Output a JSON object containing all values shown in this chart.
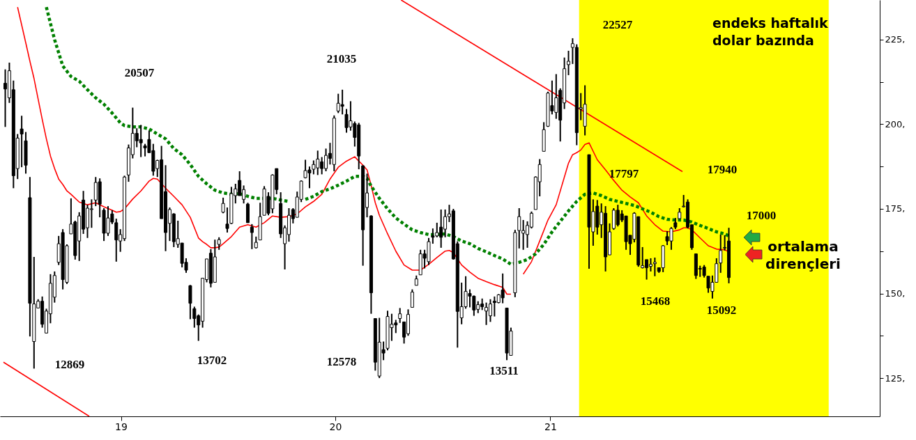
{
  "chart_data": {
    "type": "candlestick",
    "title": "endeks haftalık\ndolar bazında",
    "color": "#000000",
    "xlim": [
      "2018-06-15",
      "2022-07-10"
    ],
    "xticks": [
      {
        "value": "2019-01-01",
        "label": "19"
      },
      {
        "value": "2020-01-01",
        "label": "20"
      },
      {
        "value": "2021-01-01",
        "label": "21"
      }
    ],
    "ylim": [
      113.7,
      236.7
    ],
    "yticks": [
      {
        "value": 125,
        "label": "125,"
      },
      {
        "value": 137.5,
        "label": null
      },
      {
        "value": 150,
        "label": "150,"
      },
      {
        "value": 162.5,
        "label": null
      },
      {
        "value": 175,
        "label": "175,"
      },
      {
        "value": 187.5,
        "label": null
      },
      {
        "value": 200,
        "label": "200,"
      },
      {
        "value": 212.5,
        "label": null
      },
      {
        "value": 225,
        "label": "225,"
      }
    ],
    "x": [
      "2018-06-18",
      "2018-06-25",
      "2018-07-02",
      "2018-07-09",
      "2018-07-16",
      "2018-07-23",
      "2018-07-30",
      "2018-08-06",
      "2018-08-13",
      "2018-08-20",
      "2018-08-27",
      "2018-09-03",
      "2018-09-10",
      "2018-09-17",
      "2018-09-24",
      "2018-10-01",
      "2018-10-08",
      "2018-10-15",
      "2018-10-22",
      "2018-10-29",
      "2018-11-05",
      "2018-11-12",
      "2018-11-19",
      "2018-11-26",
      "2018-12-03",
      "2018-12-10",
      "2018-12-17",
      "2018-12-24",
      "2018-12-31",
      "2019-01-07",
      "2019-01-14",
      "2019-01-21",
      "2019-01-28",
      "2019-02-04",
      "2019-02-11",
      "2019-02-18",
      "2019-02-25",
      "2019-03-04",
      "2019-03-11",
      "2019-03-18",
      "2019-03-25",
      "2019-04-01",
      "2019-04-08",
      "2019-04-15",
      "2019-04-22",
      "2019-04-29",
      "2019-05-06",
      "2019-05-13",
      "2019-05-20",
      "2019-05-27",
      "2019-06-03",
      "2019-06-10",
      "2019-06-17",
      "2019-06-24",
      "2019-07-01",
      "2019-07-08",
      "2019-07-15",
      "2019-07-22",
      "2019-07-29",
      "2019-08-05",
      "2019-08-12",
      "2019-08-19",
      "2019-08-26",
      "2019-09-02",
      "2019-09-09",
      "2019-09-16",
      "2019-09-23",
      "2019-09-30",
      "2019-10-07",
      "2019-10-14",
      "2019-10-21",
      "2019-10-28",
      "2019-11-04",
      "2019-11-11",
      "2019-11-18",
      "2019-11-25",
      "2019-12-02",
      "2019-12-09",
      "2019-12-16",
      "2019-12-23",
      "2019-12-30",
      "2020-01-06",
      "2020-01-13",
      "2020-01-20",
      "2020-01-27",
      "2020-02-03",
      "2020-02-10",
      "2020-02-17",
      "2020-02-24",
      "2020-03-02",
      "2020-03-09",
      "2020-03-16",
      "2020-03-23",
      "2020-03-30",
      "2020-04-06",
      "2020-04-13",
      "2020-04-20",
      "2020-04-27",
      "2020-05-04",
      "2020-05-11",
      "2020-05-18",
      "2020-05-25",
      "2020-06-01",
      "2020-06-08",
      "2020-06-15",
      "2020-06-22",
      "2020-06-29",
      "2020-07-06",
      "2020-07-13",
      "2020-07-20",
      "2020-07-27",
      "2020-08-03",
      "2020-08-10",
      "2020-08-17",
      "2020-08-24",
      "2020-08-31",
      "2020-09-07",
      "2020-09-14",
      "2020-09-21",
      "2020-09-28",
      "2020-10-05",
      "2020-10-12",
      "2020-10-19",
      "2020-10-26",
      "2020-11-02",
      "2020-11-09",
      "2020-11-16",
      "2020-11-23",
      "2020-11-30",
      "2020-12-07",
      "2020-12-14",
      "2020-12-21",
      "2020-12-28",
      "2021-01-04",
      "2021-01-11",
      "2021-01-18",
      "2021-01-25",
      "2021-02-01",
      "2021-02-08",
      "2021-02-15",
      "2021-02-22",
      "2021-03-01",
      "2021-03-08",
      "2021-03-15",
      "2021-03-22",
      "2021-03-29",
      "2021-04-05",
      "2021-04-12",
      "2021-04-19",
      "2021-04-26",
      "2021-05-03",
      "2021-05-10",
      "2021-05-17",
      "2021-05-24",
      "2021-05-31",
      "2021-06-07",
      "2021-06-14",
      "2021-06-21",
      "2021-06-28",
      "2021-07-05",
      "2021-07-12",
      "2021-07-19",
      "2021-07-26",
      "2021-08-02",
      "2021-08-09",
      "2021-08-16",
      "2021-08-23",
      "2021-08-30",
      "2021-09-06",
      "2021-09-13",
      "2021-09-20",
      "2021-09-27",
      "2021-10-04",
      "2021-10-11",
      "2021-10-18",
      "2021-10-25",
      "2021-11-01"
    ],
    "ohlc": [
      [
        212.1,
        216.2,
        199.2,
        210.4
      ],
      [
        207.8,
        218.2,
        206.3,
        215.8
      ],
      [
        210.2,
        212.9,
        181.1,
        184.8
      ],
      [
        186.9,
        197.1,
        183.8,
        195.9
      ],
      [
        198.6,
        202.5,
        187.3,
        197.1
      ],
      [
        195.1,
        197.7,
        185.4,
        187.9
      ],
      [
        178.3,
        184.4,
        137.3,
        147.1
      ],
      [
        135.8,
        160.8,
        127.8,
        146.9
      ],
      [
        145.7,
        148.3,
        145.7,
        147.7
      ],
      [
        147.7,
        149.1,
        139.9,
        140.9
      ],
      [
        138.3,
        145.5,
        138.3,
        144.8
      ],
      [
        144.0,
        155.7,
        141.2,
        153.0
      ],
      [
        148.9,
        156.5,
        147.3,
        155.3
      ],
      [
        159.2,
        167.0,
        158.4,
        164.7
      ],
      [
        168.0,
        169.0,
        151.2,
        154.1
      ],
      [
        153.3,
        164.5,
        152.8,
        164.1
      ],
      [
        167.6,
        178.1,
        167.6,
        170.5
      ],
      [
        171.1,
        171.5,
        160.0,
        161.2
      ],
      [
        165.5,
        174.0,
        159.6,
        172.9
      ],
      [
        177.6,
        180.3,
        167.6,
        169.0
      ],
      [
        169.4,
        176.2,
        166.4,
        175.2
      ],
      [
        174.8,
        177.8,
        169.4,
        175.0
      ],
      [
        177.6,
        184.4,
        175.8,
        182.8
      ],
      [
        183.0,
        184.0,
        172.5,
        176.4
      ],
      [
        174.6,
        175.2,
        165.5,
        167.8
      ],
      [
        167.8,
        175.8,
        167.0,
        172.3
      ],
      [
        173.5,
        174.6,
        170.5,
        171.1
      ],
      [
        170.9,
        172.1,
        159.4,
        165.8
      ],
      [
        165.5,
        169.0,
        162.3,
        167.4
      ],
      [
        166.2,
        184.8,
        165.5,
        184.4
      ],
      [
        185.0,
        194.0,
        183.0,
        193.0
      ],
      [
        191.0,
        204.9,
        189.9,
        197.3
      ],
      [
        197.3,
        198.8,
        193.2,
        195.1
      ],
      [
        195.5,
        199.8,
        190.3,
        194.5
      ],
      [
        193.6,
        194.2,
        190.5,
        193.0
      ],
      [
        195.5,
        198.1,
        191.6,
        191.6
      ],
      [
        192.2,
        194.2,
        184.8,
        186.1
      ],
      [
        186.9,
        189.5,
        184.4,
        189.3
      ],
      [
        189.5,
        193.6,
        172.1,
        172.1
      ],
      [
        180.1,
        187.9,
        162.5,
        168.0
      ],
      [
        170.7,
        175.4,
        165.5,
        174.8
      ],
      [
        173.5,
        173.7,
        163.7,
        165.3
      ],
      [
        164.5,
        171.5,
        163.5,
        166.2
      ],
      [
        164.9,
        164.9,
        157.7,
        158.9
      ],
      [
        159.2,
        160.4,
        156.1,
        156.9
      ],
      [
        152.3,
        152.5,
        142.4,
        147.1
      ],
      [
        145.5,
        146.1,
        139.9,
        142.6
      ],
      [
        143.4,
        143.8,
        136.0,
        140.7
      ],
      [
        141.8,
        154.5,
        139.9,
        154.5
      ],
      [
        154.1,
        160.2,
        153.3,
        160.2
      ],
      [
        161.9,
        163.1,
        151.8,
        153.0
      ],
      [
        153.3,
        165.9,
        153.3,
        160.8
      ],
      [
        164.5,
        166.6,
        162.9,
        165.9
      ],
      [
        174.0,
        178.3,
        173.7,
        176.6
      ],
      [
        170.5,
        175.4,
        168.0,
        169.2
      ],
      [
        170.7,
        181.5,
        170.5,
        179.5
      ],
      [
        178.9,
        182.4,
        176.6,
        180.9
      ],
      [
        183.4,
        186.1,
        178.9,
        178.9
      ],
      [
        177.8,
        181.9,
        176.6,
        180.7
      ],
      [
        176.4,
        176.8,
        170.9,
        170.9
      ],
      [
        169.6,
        170.5,
        163.1,
        168.0
      ],
      [
        163.5,
        166.8,
        163.3,
        165.1
      ],
      [
        165.8,
        176.8,
        165.8,
        172.7
      ],
      [
        173.1,
        181.7,
        173.1,
        180.9
      ],
      [
        178.7,
        179.9,
        173.1,
        173.7
      ],
      [
        175.0,
        185.2,
        173.7,
        185.0
      ],
      [
        186.9,
        186.9,
        179.3,
        180.7
      ],
      [
        176.6,
        179.9,
        166.4,
        167.6
      ],
      [
        164.7,
        170.1,
        157.1,
        169.4
      ],
      [
        167.4,
        175.2,
        165.3,
        173.1
      ],
      [
        174.8,
        175.2,
        170.7,
        172.1
      ],
      [
        172.5,
        180.1,
        172.5,
        178.5
      ],
      [
        177.8,
        183.4,
        177.0,
        183.2
      ],
      [
        184.2,
        189.5,
        184.0,
        186.3
      ],
      [
        186.5,
        187.5,
        181.1,
        185.6
      ],
      [
        186.7,
        189.3,
        185.2,
        188.1
      ],
      [
        187.1,
        192.2,
        185.0,
        189.7
      ],
      [
        188.9,
        190.3,
        185.2,
        186.9
      ],
      [
        186.9,
        192.8,
        186.1,
        190.8
      ],
      [
        191.4,
        194.5,
        188.1,
        189.9
      ],
      [
        188.1,
        202.6,
        186.1,
        201.8
      ],
      [
        203.9,
        209.0,
        203.3,
        206.2
      ],
      [
        205.8,
        210.2,
        202.9,
        205.3
      ],
      [
        202.9,
        204.5,
        197.5,
        199.0
      ],
      [
        199.2,
        206.8,
        198.1,
        201.0
      ],
      [
        200.2,
        200.8,
        193.4,
        196.1
      ],
      [
        199.8,
        200.4,
        186.7,
        190.6
      ],
      [
        187.7,
        187.9,
        158.2,
        168.8
      ],
      [
        175.4,
        185.4,
        172.5,
        179.7
      ],
      [
        172.9,
        173.1,
        144.0,
        150.2
      ],
      [
        142.6,
        142.6,
        127.2,
        129.7
      ],
      [
        125.6,
        142.8,
        125.0,
        135.6
      ],
      [
        133.4,
        135.8,
        130.3,
        132.4
      ],
      [
        133.8,
        144.9,
        133.2,
        143.2
      ],
      [
        139.9,
        144.0,
        136.0,
        140.9
      ],
      [
        141.3,
        142.2,
        138.3,
        140.7
      ],
      [
        142.6,
        145.7,
        141.3,
        144.0
      ],
      [
        141.6,
        141.6,
        135.2,
        137.1
      ],
      [
        138.1,
        145.3,
        137.5,
        143.8
      ],
      [
        145.9,
        151.2,
        145.9,
        150.4
      ],
      [
        152.4,
        155.3,
        152.4,
        154.3
      ],
      [
        155.5,
        162.9,
        155.5,
        161.7
      ],
      [
        161.7,
        162.9,
        157.4,
        160.4
      ],
      [
        159.4,
        166.4,
        158.4,
        165.3
      ],
      [
        167.0,
        169.2,
        164.7,
        166.6
      ],
      [
        167.0,
        170.9,
        166.6,
        168.0
      ],
      [
        169.6,
        174.8,
        163.5,
        166.6
      ],
      [
        169.0,
        174.8,
        166.6,
        172.7
      ],
      [
        172.7,
        176.2,
        171.1,
        173.5
      ],
      [
        174.4,
        175.0,
        160.0,
        160.2
      ],
      [
        164.7,
        165.4,
        134.0,
        144.7
      ],
      [
        142.8,
        153.2,
        140.9,
        146.1
      ],
      [
        146.1,
        155.1,
        145.5,
        150.6
      ],
      [
        150.0,
        151.2,
        145.9,
        149.2
      ],
      [
        149.2,
        149.4,
        143.4,
        145.1
      ],
      [
        145.3,
        147.7,
        144.2,
        146.7
      ],
      [
        146.9,
        148.5,
        145.1,
        146.1
      ],
      [
        144.8,
        147.3,
        140.7,
        145.9
      ],
      [
        143.4,
        148.3,
        141.6,
        146.9
      ],
      [
        147.7,
        149.1,
        143.2,
        147.3
      ],
      [
        147.3,
        149.8,
        147.1,
        149.6
      ],
      [
        151.0,
        155.9,
        147.1,
        148.7
      ],
      [
        145.7,
        145.7,
        130.3,
        132.4
      ],
      [
        131.7,
        139.9,
        131.7,
        138.9
      ],
      [
        150.2,
        168.8,
        148.9,
        168.0
      ],
      [
        168.6,
        175.2,
        163.3,
        172.7
      ],
      [
        167.8,
        171.7,
        162.9,
        168.6
      ],
      [
        167.4,
        171.3,
        163.5,
        170.1
      ],
      [
        169.6,
        174.2,
        169.2,
        173.7
      ],
      [
        174.8,
        184.6,
        174.8,
        184.4
      ],
      [
        183.0,
        189.7,
        178.7,
        188.1
      ],
      [
        192.0,
        200.6,
        192.0,
        198.4
      ],
      [
        199.4,
        209.6,
        199.2,
        209.2
      ],
      [
        205.5,
        212.9,
        202.9,
        203.9
      ],
      [
        203.5,
        214.8,
        201.6,
        207.8
      ],
      [
        210.0,
        210.6,
        194.9,
        201.2
      ],
      [
        206.3,
        219.7,
        204.5,
        216.4
      ],
      [
        217.6,
        221.7,
        214.5,
        218.6
      ],
      [
        222.7,
        225.4,
        217.8,
        223.8
      ],
      [
        222.7,
        223.6,
        193.8,
        197.5
      ],
      [
        204.5,
        209.2,
        201.2,
        204.9
      ],
      [
        199.4,
        211.5,
        196.7,
        205.9
      ],
      [
        191.0,
        191.0,
        157.3,
        169.6
      ],
      [
        168.2,
        177.8,
        164.1,
        174.2
      ],
      [
        175.8,
        177.6,
        167.4,
        169.6
      ],
      [
        170.3,
        176.6,
        166.4,
        174.0
      ],
      [
        173.7,
        175.8,
        156.5,
        160.8
      ],
      [
        161.4,
        170.7,
        161.4,
        168.2
      ],
      [
        169.2,
        175.2,
        168.8,
        174.6
      ],
      [
        174.6,
        176.2,
        169.8,
        170.3
      ],
      [
        173.5,
        174.6,
        171.1,
        171.7
      ],
      [
        172.9,
        172.9,
        162.9,
        165.3
      ],
      [
        167.2,
        167.2,
        161.4,
        164.7
      ],
      [
        166.0,
        174.0,
        165.1,
        173.7
      ],
      [
        172.7,
        172.7,
        157.9,
        158.4
      ],
      [
        157.6,
        163.7,
        157.4,
        158.2
      ],
      [
        160.0,
        160.0,
        154.1,
        157.6
      ],
      [
        158.0,
        160.4,
        156.5,
        158.6
      ],
      [
        158.8,
        160.6,
        155.1,
        159.2
      ],
      [
        157.6,
        157.6,
        156.1,
        156.5
      ],
      [
        157.6,
        164.3,
        156.3,
        164.1
      ],
      [
        166.8,
        168.4,
        164.3,
        165.5
      ],
      [
        165.5,
        169.6,
        162.9,
        169.2
      ],
      [
        170.9,
        172.3,
        169.0,
        169.6
      ],
      [
        172.1,
        175.2,
        171.9,
        174.0
      ],
      [
        175.6,
        179.1,
        175.4,
        175.8
      ],
      [
        177.0,
        177.8,
        169.2,
        169.6
      ],
      [
        170.3,
        170.3,
        162.9,
        163.5
      ],
      [
        161.7,
        161.7,
        154.3,
        155.3
      ],
      [
        157.4,
        158.2,
        154.9,
        157.2
      ],
      [
        157.8,
        158.4,
        154.7,
        155.3
      ],
      [
        155.1,
        155.1,
        150.2,
        151.6
      ],
      [
        150.6,
        155.3,
        148.5,
        153.3
      ],
      [
        153.3,
        160.4,
        153.3,
        158.8
      ],
      [
        159.0,
        167.4,
        156.1,
        162.7
      ],
      [
        163.4,
        167.2,
        162.7,
        163.6
      ],
      [
        165.5,
        169.4,
        153.0,
        154.7
      ]
    ],
    "series": [
      {
        "type": "line",
        "color": "#ff0000",
        "x": [
          "2018-07-09",
          "2018-07-16",
          "2018-07-23",
          "2018-07-30",
          "2018-08-06",
          "2018-08-13",
          "2018-08-20",
          "2018-08-27",
          "2018-09-03",
          "2018-09-10",
          "2018-09-17",
          "2018-09-24",
          "2018-10-01",
          "2018-10-08",
          "2018-10-22",
          "2018-11-05",
          "2018-11-19",
          "2018-12-03",
          "2018-12-17",
          "2018-12-24",
          "2018-12-31",
          "2019-01-07",
          "2019-01-21",
          "2019-02-04",
          "2019-02-18",
          "2019-02-25",
          "2019-03-04",
          "2019-03-18",
          "2019-04-01",
          "2019-04-15",
          "2019-04-29",
          "2019-05-13",
          "2019-05-20",
          "2019-05-27",
          "2019-06-03",
          "2019-06-10",
          "2019-06-17",
          "2019-06-24",
          "2019-07-08",
          "2019-07-22",
          "2019-08-05",
          "2019-08-19",
          "2019-09-02",
          "2019-09-16",
          "2019-09-30",
          "2019-10-14",
          "2019-10-28",
          "2019-11-11",
          "2019-11-25",
          "2019-12-09",
          "2019-12-23",
          "2020-01-06",
          "2020-01-20",
          "2020-02-03",
          "2020-02-10",
          "2020-02-17",
          "2020-02-24",
          "2020-03-02",
          "2020-03-09",
          "2020-03-16",
          "2020-03-30",
          "2020-04-13",
          "2020-04-27",
          "2020-05-11",
          "2020-05-25",
          "2020-06-08",
          "2020-06-22",
          "2020-07-06",
          "2020-07-13",
          "2020-07-20",
          "2020-08-03",
          "2020-08-17",
          "2020-08-31",
          "2020-09-14",
          "2020-09-28",
          "2020-10-12",
          "2020-10-19",
          "2020-10-26",
          "2020-11-02",
          "2020-11-16",
          "2020-11-30",
          "2020-12-14",
          "2020-12-28",
          "2021-01-11",
          "2021-01-25",
          "2021-02-01",
          "2021-02-08",
          "2021-02-15",
          "2021-02-22",
          "2021-03-01",
          "2021-03-08",
          "2021-03-22",
          "2021-04-05",
          "2021-04-19",
          "2021-05-03",
          "2021-05-17",
          "2021-05-31",
          "2021-06-14",
          "2021-06-28",
          "2021-07-12",
          "2021-07-26",
          "2021-08-09",
          "2021-08-16",
          "2021-08-23",
          "2021-08-30",
          "2021-09-13",
          "2021-09-27",
          "2021-10-11",
          "2021-10-25",
          "2021-11-01"
        ],
        "values": [
          234.6,
          229.3,
          224.0,
          218.6,
          213.5,
          207.4,
          201.4,
          195.7,
          190.6,
          186.9,
          183.8,
          182.2,
          180.3,
          179.3,
          177.0,
          176.2,
          176.8,
          175.6,
          174.6,
          174.0,
          174.2,
          175.0,
          177.9,
          180.3,
          183.2,
          184.0,
          183.8,
          181.1,
          178.7,
          176.2,
          172.5,
          166.4,
          165.3,
          164.5,
          163.5,
          163.5,
          163.7,
          164.7,
          166.8,
          169.6,
          170.3,
          169.6,
          170.9,
          172.9,
          172.5,
          172.7,
          173.5,
          175.6,
          177.2,
          179.3,
          183.8,
          187.3,
          189.1,
          190.4,
          189.1,
          187.9,
          186.5,
          181.9,
          176.8,
          173.1,
          167.6,
          162.5,
          158.4,
          156.9,
          156.9,
          158.6,
          160.6,
          162.5,
          162.7,
          162.1,
          158.4,
          156.3,
          154.5,
          153.5,
          152.6,
          151.8,
          149.8,
          149.8,
          null,
          155.7,
          159.4,
          165.5,
          171.7,
          176.2,
          184.4,
          188.5,
          191.0,
          191.6,
          192.4,
          194.0,
          194.5,
          189.5,
          186.5,
          183.4,
          180.5,
          178.5,
          176.8,
          172.9,
          170.3,
          168.4,
          168.2,
          168.8,
          169.4,
          169.4,
          168.8,
          166.4,
          164.1,
          163.1,
          162.9,
          162.3
        ]
      },
      {
        "type": "line",
        "color": "#008000",
        "line_style": "dotted",
        "x": [
          "2018-08-27",
          "2018-09-10",
          "2018-09-24",
          "2018-10-08",
          "2018-10-22",
          "2018-11-05",
          "2018-11-19",
          "2018-12-03",
          "2018-12-17",
          "2018-12-31",
          "2019-01-07",
          "2019-01-21",
          "2019-02-04",
          "2019-02-18",
          "2019-03-04",
          "2019-03-18",
          "2019-04-01",
          "2019-04-15",
          "2019-04-29",
          "2019-05-13",
          "2019-05-27",
          "2019-06-10",
          "2019-06-24",
          "2019-07-08",
          "2019-07-22",
          "2019-08-05",
          "2019-08-19",
          "2019-09-02",
          "2019-09-16",
          "2019-09-30",
          "2019-10-14",
          "2019-10-28",
          "2019-11-11",
          "2019-11-25",
          "2019-12-09",
          "2019-12-23",
          "2020-01-06",
          "2020-01-20",
          "2020-02-03",
          "2020-02-17",
          "2020-02-24",
          "2020-03-02",
          "2020-03-16",
          "2020-03-30",
          "2020-04-13",
          "2020-04-27",
          "2020-05-11",
          "2020-05-25",
          "2020-06-08",
          "2020-06-22",
          "2020-07-06",
          "2020-07-20",
          "2020-08-03",
          "2020-08-17",
          "2020-08-31",
          "2020-09-14",
          "2020-09-28",
          "2020-10-12",
          "2020-10-26",
          "2020-11-09",
          "2020-11-23",
          "2020-12-07",
          "2020-12-21",
          "2021-01-04",
          "2021-01-18",
          "2021-02-01",
          "2021-02-15",
          "2021-03-01",
          "2021-03-15",
          "2021-03-29",
          "2021-04-12",
          "2021-04-26",
          "2021-05-10",
          "2021-05-24",
          "2021-06-07",
          "2021-06-21",
          "2021-07-05",
          "2021-07-19",
          "2021-08-02",
          "2021-08-16",
          "2021-08-30",
          "2021-09-13",
          "2021-09-27",
          "2021-10-11",
          "2021-10-25",
          "2021-11-01"
        ],
        "values": [
          234.6,
          225.0,
          217.2,
          214.1,
          212.7,
          210.2,
          207.8,
          205.9,
          203.3,
          200.4,
          199.6,
          199.2,
          199.2,
          198.6,
          197.1,
          195.7,
          192.8,
          191.0,
          188.1,
          184.6,
          182.4,
          180.5,
          179.7,
          179.3,
          179.5,
          178.7,
          178.1,
          178.1,
          178.1,
          177.6,
          177.2,
          null,
          177.8,
          178.7,
          180.1,
          180.9,
          182.0,
          183.2,
          184.6,
          184.6,
          184.0,
          181.7,
          178.1,
          175.0,
          172.3,
          170.5,
          168.8,
          168.0,
          167.4,
          167.4,
          167.6,
          166.8,
          165.5,
          164.7,
          163.3,
          162.3,
          161.2,
          160.2,
          158.6,
          159.2,
          160.0,
          161.7,
          164.5,
          168.2,
          171.3,
          174.4,
          177.2,
          179.3,
          179.7,
          178.9,
          177.8,
          177.2,
          176.6,
          176.0,
          175.0,
          174.0,
          172.7,
          171.9,
          171.7,
          171.7,
          171.1,
          170.1,
          169.2,
          168.2,
          167.6,
          167.0
        ]
      },
      {
        "type": "line",
        "color": "#ff0000",
        "x": [
          "2020-04-22",
          "2021-08-14"
        ],
        "values": [
          236.7,
          186.0
        ]
      },
      {
        "type": "line",
        "color": "#ff0000",
        "x": [
          "2018-06-15",
          "2018-11-08"
        ],
        "values": [
          129.7,
          113.7
        ]
      }
    ],
    "bands": [
      {
        "axis": "x",
        "from": "2021-02-19",
        "to": "2022-04-20",
        "color": "#ffff00"
      }
    ],
    "annotations": [
      "12869",
      "20507",
      "13702",
      "21035",
      "12578",
      "13511",
      "22527",
      "17797",
      "17940",
      "17000",
      "15468",
      "15092",
      "ortalama\ndirençleri"
    ]
  }
}
